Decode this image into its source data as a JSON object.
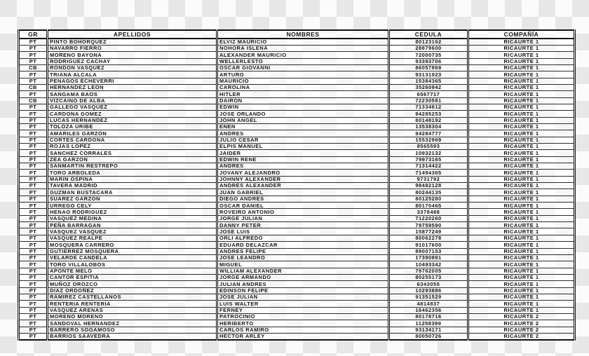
{
  "document": {
    "description_colors": {
      "checker_light": "#fbfbfb",
      "checker_dark": "#e7e7e7",
      "text": "#141414",
      "border": "#111111"
    }
  },
  "table": {
    "columns": [
      {
        "label": "GR",
        "align": "center"
      },
      {
        "label": "APELLIDOS",
        "align": "left"
      },
      {
        "label": "NOMBRES",
        "align": "left"
      },
      {
        "label": "CEDULA",
        "align": "center"
      },
      {
        "label": "COMPAÑÍA",
        "align": "center"
      }
    ],
    "rows": [
      [
        "PT",
        "PINTO BOHORQUEZ",
        "ELVIZ MAURICIO",
        "80123162",
        "RICAURTE 1"
      ],
      [
        "PT",
        "NAVARRO FIERRO",
        "NOHORA ISLENA",
        "28879600",
        "RICAURTE 1"
      ],
      [
        "PT",
        "MORENO BAYONA",
        "ALEXANDER MAURICIO",
        "72000735",
        "RICAURTE 1"
      ],
      [
        "PT",
        "RODRIGUEZ CACHAY",
        "WELLERLESTO",
        "93393706",
        "RICAURTE 1"
      ],
      [
        "CB",
        "RONDON VASQUEZ",
        "OSCAR GIOVANNI",
        "86057869",
        "RICAURTE 1"
      ],
      [
        "PT",
        "TRIANA ALCALA",
        "ARTURO",
        "93131923",
        "RICAURTE 1"
      ],
      [
        "PT",
        "PENAGOS ECHEVERRI",
        "MAURICIO",
        "15384365",
        "RICAURTE 1"
      ],
      [
        "CB",
        "HERNANDEZ LEON",
        "CAROLINA",
        "35260942",
        "RICAURTE 1"
      ],
      [
        "PT",
        "SANGAMA BAOS",
        "HITLER",
        "6567717",
        "RICAURTE 1"
      ],
      [
        "CB",
        "VIZCAINO DE ALBA",
        "DAIRON",
        "72230581",
        "RICAURTE 1"
      ],
      [
        "PT",
        "GALLEGO VASQUEZ",
        "EDWIN",
        "71334812",
        "RICAURTE 1"
      ],
      [
        "PT",
        "CARDONA GOMEZ",
        "JOSE ORLANDO",
        "94285253",
        "RICAURTE 1"
      ],
      [
        "PT",
        "LUCAS HERNANDEZ",
        "JOHN ANGEL",
        "80148192",
        "RICAURTE 1"
      ],
      [
        "PT",
        "TOLOZA URIBE",
        "ENEN",
        "13538304",
        "RICAURTE 1"
      ],
      [
        "PT",
        "AMARILES GARZON",
        "ANDRES",
        "94284777",
        "RICAURTE 1"
      ],
      [
        "PT",
        "CORTES CARDONA",
        "JULIO CESAR",
        "15532969",
        "RICAURTE 1"
      ],
      [
        "PT",
        "ROJAS LOPEZ",
        "ELPIS MANUEL",
        "8565593",
        "RICAURTE 1"
      ],
      [
        "PT",
        "SANCHEZ CORRALES",
        "JAIDER",
        "10932132",
        "RICAURTE 1"
      ],
      [
        "PT",
        "ZEA GARZON",
        "EDWIN RENE",
        "79973165",
        "RICAURTE 1"
      ],
      [
        "PT",
        "SANMARTIN RESTREPO",
        "ANDRES",
        "71314422",
        "RICAURTE 1"
      ],
      [
        "PT",
        "TORO ARBOLEDA",
        "JOVANY ALEJANDRO",
        "71494365",
        "RICAURTE 1"
      ],
      [
        "PT",
        "MARIN OSPINA",
        "JOHNNY ALEXANDER",
        "9731792",
        "RICAURTE 1"
      ],
      [
        "PT",
        "TAVERA MADRID",
        "ANDRES ALEXANDER",
        "98482128",
        "RICAURTE 1"
      ],
      [
        "PT",
        "GUZMAN BUSTACARA",
        "JUAN GABRIEL",
        "80244135",
        "RICAURTE 1"
      ],
      [
        "PT",
        "SUAREZ GARZON",
        "DIEGO ANDRES",
        "80125280",
        "RICAURTE 1"
      ],
      [
        "PT",
        "URREGO CELY",
        "OSCAR DANIEL",
        "80170465",
        "RICAURTE 1"
      ],
      [
        "PT",
        "HENAO RODRIGUEZ",
        "ROVEIRO ANTONIO",
        "3378488",
        "RICAURTE 1"
      ],
      [
        "PT",
        "VASQUEZ MEDINA",
        "JORGE JULIAN",
        "71220260",
        "RICAURTE 1"
      ],
      [
        "PT",
        "PEÑA BARRAGAN",
        "DANNY PETER",
        "79759590",
        "RICAURTE 1"
      ],
      [
        "PT",
        "VASQUEZ VASQUEZ",
        "JOSE LUIS",
        "15877249",
        "RICAURTE 1"
      ],
      [
        "PT",
        "VASQUEZ REALPE",
        "ORLI ALFREDO",
        "80062278",
        "RICAURTE 1"
      ],
      [
        "PT",
        "MOSQUERA CARRERO",
        "EDUARD DELAZCAR",
        "91017600",
        "RICAURTE 1"
      ],
      [
        "PT",
        "GUTIERREZ MOSQUERA",
        "ANDRES FELIPE",
        "89007153",
        "RICAURTE 1"
      ],
      [
        "PT",
        "VELARDE CANDELA",
        "JOSE LEANDRO",
        "17390891",
        "RICAURTE 1"
      ],
      [
        "PT",
        "TORO VILLALOBOS",
        "MIGUEL",
        "10493342",
        "RICAURTE 1"
      ],
      [
        "PT",
        "APONTE MELO",
        "WILLIAM ALEXANDER",
        "79762005",
        "RICAURTE 1"
      ],
      [
        "PT",
        "CANTOR ESPITIA",
        "JORGE ARMANDO",
        "80255173",
        "RICAURTE 1"
      ],
      [
        "PT",
        "MUÑOZ OROZCO",
        "JULIAN ANDRES",
        "6343055",
        "RICAURTE 1"
      ],
      [
        "PT",
        "DIAZ ORDOÑEZ",
        "EDINSON FELIPE",
        "10293886",
        "RICAURTE 1"
      ],
      [
        "PT",
        "RAMIREZ CASTELLANOS",
        "JOSE JULIAN",
        "91351529",
        "RICAURTE 1"
      ],
      [
        "PT",
        "RENTERIA RENTERIA",
        "LUIS WALTER",
        "4814837",
        "RICAURTE 1"
      ],
      [
        "PT",
        "VASQUEZ ARENAS",
        "FERNEY",
        "16462356",
        "RICAURTE 1"
      ],
      [
        "PT",
        "MORENO MORENO",
        "PATROCINIO",
        "80178716",
        "RICAURTE 2"
      ],
      [
        "PT",
        "SANDOVAL HERNANDEZ",
        "HERIBERTO",
        "11258399",
        "RICAURTE 2"
      ],
      [
        "PT",
        "BARRERO SOGAMOSO",
        "CARLOS RAMIRO",
        "93134171",
        "RICAURTE 2"
      ],
      [
        "PT",
        "BARRIOS SAAVEDRA",
        "HECTOR ARLEY",
        "80050726",
        "RICAURTE 2"
      ]
    ]
  }
}
